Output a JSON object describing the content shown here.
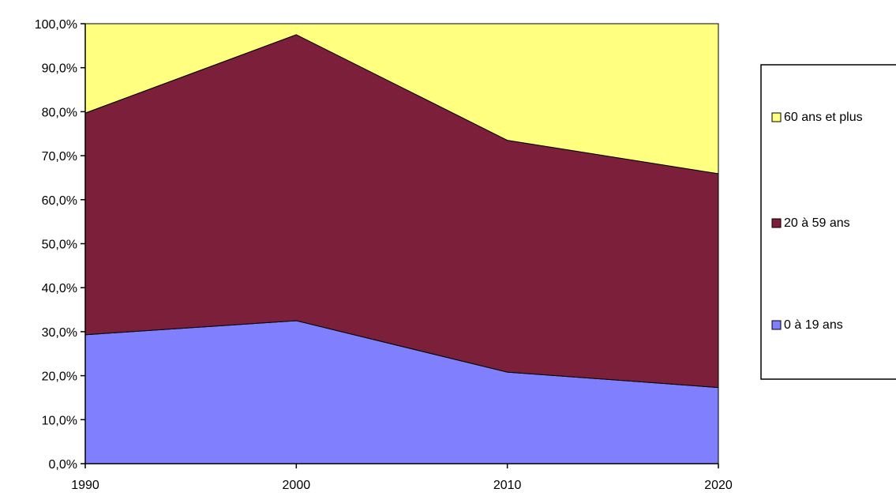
{
  "chart_data": {
    "type": "area",
    "stacked": true,
    "x": [
      "1990",
      "2000",
      "2010",
      "2020"
    ],
    "series": [
      {
        "name": "0 à 19 ans",
        "values": [
          29.3,
          32.5,
          20.8,
          17.3
        ],
        "color": "#8080ff"
      },
      {
        "name": "20 à 59 ans",
        "values": [
          50.4,
          65.0,
          52.7,
          48.6
        ],
        "color": "#7b1f3a"
      },
      {
        "name": "60 ans et plus",
        "values": [
          20.3,
          2.5,
          26.5,
          34.1
        ],
        "color": "#ffff80"
      }
    ],
    "ylim": [
      0,
      100
    ],
    "yticks": [
      "0,0%",
      "10,0%",
      "20,0%",
      "30,0%",
      "40,0%",
      "50,0%",
      "60,0%",
      "70,0%",
      "80,0%",
      "90,0%",
      "100,0%"
    ],
    "legend_order": [
      2,
      1,
      0
    ],
    "legend_position": "right",
    "grid": false,
    "title": "",
    "xlabel": "",
    "ylabel": ""
  }
}
